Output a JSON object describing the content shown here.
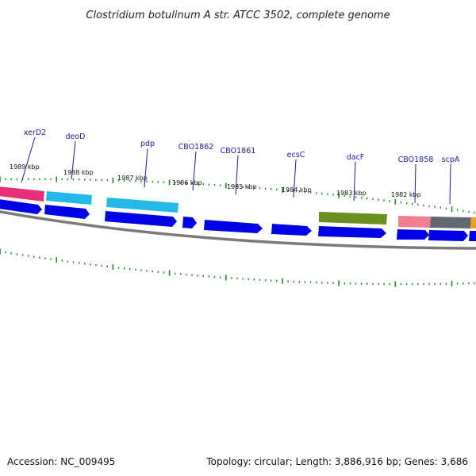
{
  "title": "Clostridium botulinum A str. ATCC 3502, complete genome",
  "footer": {
    "accession": "Accession: NC_009495",
    "summary": "Topology: circular; Length: 3,886,916 bp; Genes: 3,686"
  },
  "colors": {
    "forward_cds": "#0000e6",
    "backbone": "#7a7a7a",
    "tick": "#1f8a1f",
    "label": "#1a1aa8"
  },
  "kbp_labels": [
    {
      "id": "1989",
      "text": "1989 kbp"
    },
    {
      "id": "1988",
      "text": "1988 kbp"
    },
    {
      "id": "1987",
      "text": "1987 kbp"
    },
    {
      "id": "1986",
      "text": "1986 kbp"
    },
    {
      "id": "1985",
      "text": "1985 kbp"
    },
    {
      "id": "1984",
      "text": "1984 kbp"
    },
    {
      "id": "1983",
      "text": "1983 kbp"
    },
    {
      "id": "1982",
      "text": "1982 kbp"
    }
  ],
  "gene_labels": [
    {
      "id": "xerd2",
      "text": "xerD2"
    },
    {
      "id": "deod",
      "text": "deoD"
    },
    {
      "id": "pdp",
      "text": "pdp"
    },
    {
      "id": "cbo1862",
      "text": "CBO1862"
    },
    {
      "id": "cbo1861",
      "text": "CBO1861"
    },
    {
      "id": "ecsc",
      "text": "ecsC"
    },
    {
      "id": "dacf",
      "text": "dacF"
    },
    {
      "id": "cbo1858",
      "text": "CBO1858"
    },
    {
      "id": "scpa",
      "text": "scpA"
    }
  ],
  "function_blocks": [
    {
      "id": "xerd2",
      "color": "#e8307a"
    },
    {
      "id": "deod",
      "color": "#22b8e8"
    },
    {
      "id": "pdp",
      "color": "#22b8e8"
    },
    {
      "id": "dacf",
      "color": "#6b8e23"
    },
    {
      "id": "cbo1858",
      "color": "#f08090"
    },
    {
      "id": "scpa",
      "color": "#606870"
    },
    {
      "id": "edge",
      "color": "#f0a020"
    }
  ]
}
